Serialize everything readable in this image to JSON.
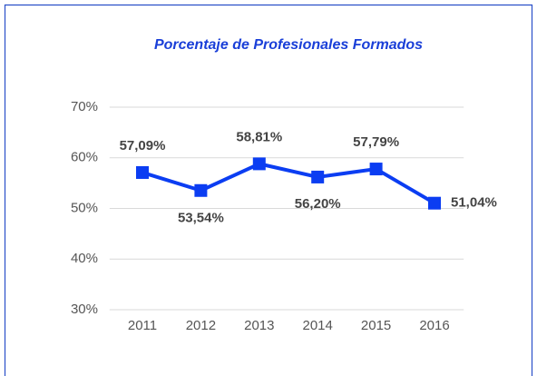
{
  "chart_data": {
    "type": "line",
    "title": "Porcentaje de Profesionales Formados",
    "categories": [
      "2011",
      "2012",
      "2013",
      "2014",
      "2015",
      "2016"
    ],
    "series": [
      {
        "name": "Porcentaje",
        "color": "#0b3df2",
        "values": [
          57.09,
          53.54,
          58.81,
          56.2,
          57.79,
          51.04
        ],
        "value_labels": [
          "57,09%",
          "53,54%",
          "58,81%",
          "56,20%",
          "57,79%",
          "51,04%"
        ]
      }
    ],
    "ylim": [
      30,
      70
    ],
    "yticks": [
      {
        "value": 30,
        "label": "30%"
      },
      {
        "value": 40,
        "label": "40%"
      },
      {
        "value": 50,
        "label": "50%"
      },
      {
        "value": 60,
        "label": "60%"
      },
      {
        "value": 70,
        "label": "70%"
      }
    ],
    "grid": true
  }
}
